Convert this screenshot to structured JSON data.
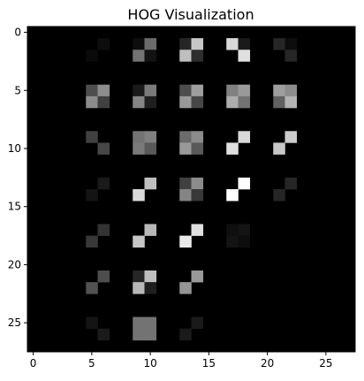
{
  "chart_data": {
    "type": "heatmap",
    "title": "HOG Visualization",
    "xlim": [
      -0.5,
      27.5
    ],
    "ylim": [
      27.5,
      -0.5
    ],
    "x_ticks": [
      0,
      5,
      10,
      15,
      20,
      25
    ],
    "y_ticks": [
      0,
      5,
      10,
      15,
      20,
      25
    ],
    "x_tick_labels": [
      "0",
      "5",
      "10",
      "15",
      "20",
      "25"
    ],
    "y_tick_labels": [
      "0",
      "5",
      "10",
      "15",
      "20",
      "25"
    ],
    "colormap": "gray",
    "background_value": 0,
    "grid": false,
    "cells": [
      {
        "x": 6,
        "y": 1,
        "v": 0.05
      },
      {
        "x": 5,
        "y": 2,
        "v": 0.04
      },
      {
        "x": 9,
        "y": 1,
        "v": 0.05
      },
      {
        "x": 10,
        "y": 1,
        "v": 0.42
      },
      {
        "x": 9,
        "y": 2,
        "v": 0.45
      },
      {
        "x": 10,
        "y": 2,
        "v": 0.07
      },
      {
        "x": 13,
        "y": 1,
        "v": 0.15
      },
      {
        "x": 14,
        "y": 1,
        "v": 0.78
      },
      {
        "x": 13,
        "y": 2,
        "v": 0.75
      },
      {
        "x": 14,
        "y": 2,
        "v": 0.18
      },
      {
        "x": 17,
        "y": 1,
        "v": 0.85
      },
      {
        "x": 18,
        "y": 1,
        "v": 0.1
      },
      {
        "x": 18,
        "y": 2,
        "v": 0.88
      },
      {
        "x": 21,
        "y": 1,
        "v": 0.15
      },
      {
        "x": 22,
        "y": 1,
        "v": 0.05
      },
      {
        "x": 22,
        "y": 2,
        "v": 0.15
      },
      {
        "x": 5,
        "y": 5,
        "v": 0.3
      },
      {
        "x": 6,
        "y": 5,
        "v": 0.55
      },
      {
        "x": 5,
        "y": 6,
        "v": 0.55
      },
      {
        "x": 6,
        "y": 6,
        "v": 0.25
      },
      {
        "x": 9,
        "y": 5,
        "v": 0.1
      },
      {
        "x": 10,
        "y": 5,
        "v": 0.48
      },
      {
        "x": 9,
        "y": 6,
        "v": 0.52
      },
      {
        "x": 10,
        "y": 6,
        "v": 0.12
      },
      {
        "x": 13,
        "y": 5,
        "v": 0.3
      },
      {
        "x": 14,
        "y": 5,
        "v": 0.62
      },
      {
        "x": 13,
        "y": 6,
        "v": 0.6
      },
      {
        "x": 14,
        "y": 6,
        "v": 0.28
      },
      {
        "x": 17,
        "y": 5,
        "v": 0.5
      },
      {
        "x": 18,
        "y": 5,
        "v": 0.6
      },
      {
        "x": 17,
        "y": 6,
        "v": 0.68
      },
      {
        "x": 18,
        "y": 6,
        "v": 0.45
      },
      {
        "x": 21,
        "y": 5,
        "v": 0.62
      },
      {
        "x": 22,
        "y": 5,
        "v": 0.55
      },
      {
        "x": 21,
        "y": 6,
        "v": 0.38
      },
      {
        "x": 22,
        "y": 6,
        "v": 0.7
      },
      {
        "x": 5,
        "y": 9,
        "v": 0.25
      },
      {
        "x": 6,
        "y": 10,
        "v": 0.28
      },
      {
        "x": 9,
        "y": 9,
        "v": 0.45
      },
      {
        "x": 10,
        "y": 9,
        "v": 0.5
      },
      {
        "x": 9,
        "y": 10,
        "v": 0.48
      },
      {
        "x": 10,
        "y": 10,
        "v": 0.35
      },
      {
        "x": 13,
        "y": 9,
        "v": 0.42
      },
      {
        "x": 14,
        "y": 9,
        "v": 0.55
      },
      {
        "x": 13,
        "y": 10,
        "v": 0.6
      },
      {
        "x": 14,
        "y": 10,
        "v": 0.35
      },
      {
        "x": 18,
        "y": 9,
        "v": 0.85
      },
      {
        "x": 17,
        "y": 10,
        "v": 0.88
      },
      {
        "x": 22,
        "y": 9,
        "v": 0.8
      },
      {
        "x": 21,
        "y": 10,
        "v": 0.78
      },
      {
        "x": 6,
        "y": 13,
        "v": 0.1
      },
      {
        "x": 5,
        "y": 14,
        "v": 0.08
      },
      {
        "x": 10,
        "y": 13,
        "v": 0.75
      },
      {
        "x": 9,
        "y": 14,
        "v": 0.85
      },
      {
        "x": 13,
        "y": 13,
        "v": 0.25
      },
      {
        "x": 14,
        "y": 13,
        "v": 0.55
      },
      {
        "x": 13,
        "y": 14,
        "v": 0.52
      },
      {
        "x": 14,
        "y": 14,
        "v": 0.22
      },
      {
        "x": 18,
        "y": 13,
        "v": 1.0
      },
      {
        "x": 17,
        "y": 14,
        "v": 1.0
      },
      {
        "x": 22,
        "y": 13,
        "v": 0.15
      },
      {
        "x": 21,
        "y": 14,
        "v": 0.15
      },
      {
        "x": 6,
        "y": 17,
        "v": 0.2
      },
      {
        "x": 5,
        "y": 18,
        "v": 0.22
      },
      {
        "x": 10,
        "y": 17,
        "v": 0.72
      },
      {
        "x": 9,
        "y": 18,
        "v": 0.78
      },
      {
        "x": 14,
        "y": 17,
        "v": 0.88
      },
      {
        "x": 13,
        "y": 18,
        "v": 0.92
      },
      {
        "x": 17,
        "y": 17,
        "v": 0.06
      },
      {
        "x": 18,
        "y": 17,
        "v": 0.08
      },
      {
        "x": 17,
        "y": 18,
        "v": 0.08
      },
      {
        "x": 18,
        "y": 18,
        "v": 0.05
      },
      {
        "x": 6,
        "y": 21,
        "v": 0.3
      },
      {
        "x": 5,
        "y": 22,
        "v": 0.32
      },
      {
        "x": 9,
        "y": 21,
        "v": 0.15
      },
      {
        "x": 10,
        "y": 21,
        "v": 0.75
      },
      {
        "x": 9,
        "y": 22,
        "v": 0.72
      },
      {
        "x": 10,
        "y": 22,
        "v": 0.12
      },
      {
        "x": 14,
        "y": 21,
        "v": 0.6
      },
      {
        "x": 13,
        "y": 22,
        "v": 0.58
      },
      {
        "x": 5,
        "y": 25,
        "v": 0.08
      },
      {
        "x": 6,
        "y": 26,
        "v": 0.1
      },
      {
        "x": 9,
        "y": 25,
        "v": 0.45
      },
      {
        "x": 10,
        "y": 25,
        "v": 0.45
      },
      {
        "x": 9,
        "y": 26,
        "v": 0.45
      },
      {
        "x": 10,
        "y": 26,
        "v": 0.45
      },
      {
        "x": 14,
        "y": 25,
        "v": 0.1
      },
      {
        "x": 13,
        "y": 26,
        "v": 0.1
      }
    ]
  }
}
